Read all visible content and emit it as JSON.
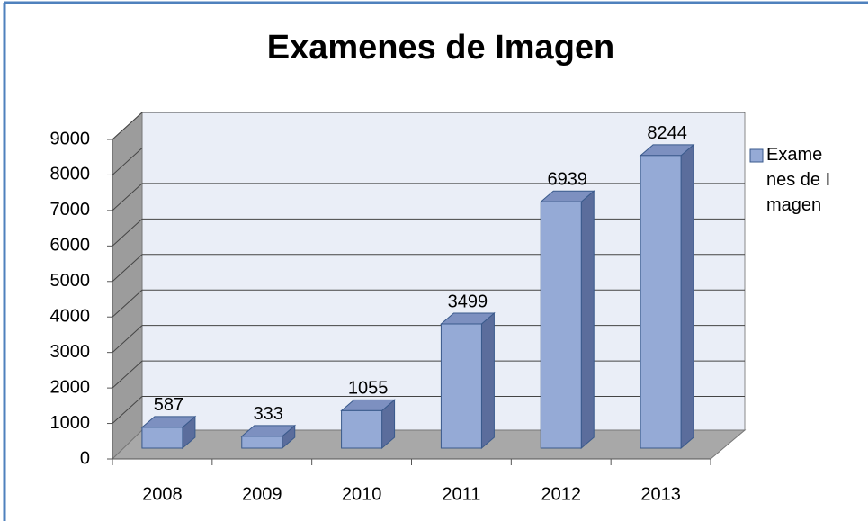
{
  "chart_data": {
    "type": "bar3d",
    "title": "Examenes de Imagen",
    "categories": [
      "2008",
      "2009",
      "2010",
      "2011",
      "2012",
      "2013"
    ],
    "series": [
      {
        "name": "Examenes de Imagen",
        "color": "#95aad6",
        "values": [
          587,
          333,
          1055,
          3499,
          6939,
          8244
        ]
      }
    ],
    "ylim": [
      0,
      9000
    ],
    "yticks": [
      0,
      1000,
      2000,
      3000,
      4000,
      5000,
      6000,
      7000,
      8000,
      9000
    ],
    "grid": true,
    "legend": "right"
  }
}
